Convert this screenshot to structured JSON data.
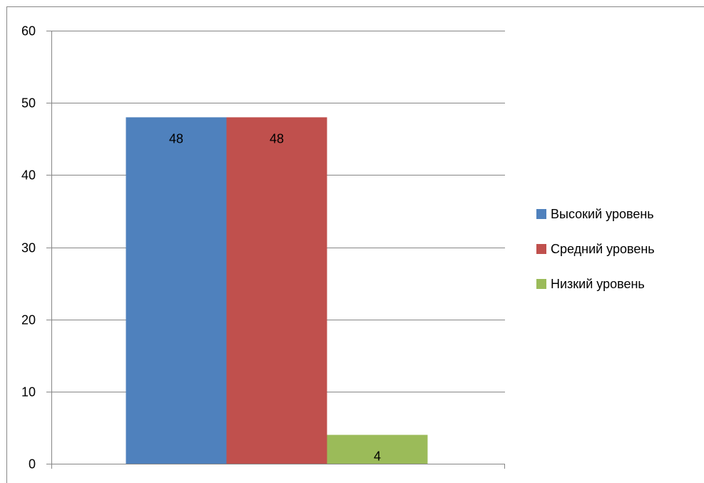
{
  "chart_data": {
    "type": "bar",
    "title": "",
    "xlabel": "",
    "ylabel": "",
    "ylim": [
      0,
      60
    ],
    "y_ticks": [
      0,
      10,
      20,
      30,
      40,
      50,
      60
    ],
    "grid": true,
    "legend_position": "right",
    "categories": [
      ""
    ],
    "series": [
      {
        "name": "Высокий уровень",
        "values": [
          48
        ],
        "color": "#4F81BD"
      },
      {
        "name": "Средний уровень",
        "values": [
          48
        ],
        "color": "#C0504D"
      },
      {
        "name": "Низкий уровень",
        "values": [
          4
        ],
        "color": "#9BBB59"
      }
    ],
    "data_labels": true
  }
}
